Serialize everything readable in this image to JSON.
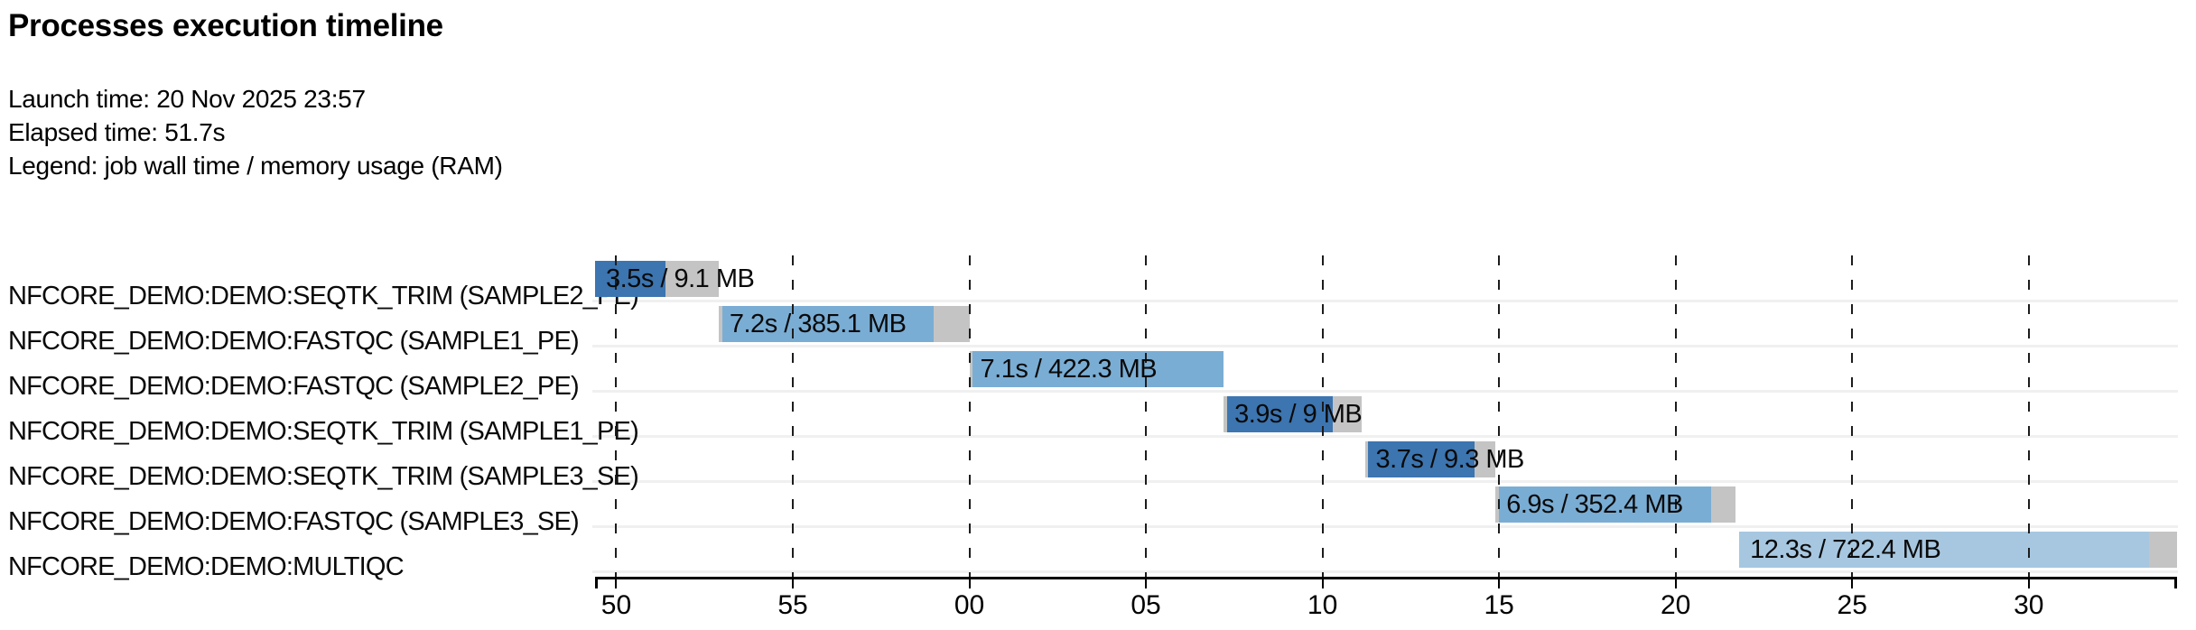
{
  "page": {
    "title": "Processes execution timeline",
    "launch_time": "Launch time: 20 Nov 2025 23:57",
    "elapsed_time": "Elapsed time: 51.7s",
    "legend_note": "Legend: job wall time / memory usage (RAM)"
  },
  "chart_data": {
    "type": "timeline-gantt",
    "title": "Processes execution timeline",
    "time_axis": {
      "description": "clock seconds after 23:57:00; labels show seconds of minute (00 = 23:58:00)",
      "domain_s": [
        49.4,
        94.2
      ],
      "ticks": [
        {
          "t": 50,
          "label": "50"
        },
        {
          "t": 55,
          "label": "55"
        },
        {
          "t": 60,
          "label": "00"
        },
        {
          "t": 65,
          "label": "05"
        },
        {
          "t": 70,
          "label": "10"
        },
        {
          "t": 75,
          "label": "15"
        },
        {
          "t": 80,
          "label": "20"
        },
        {
          "t": 85,
          "label": "25"
        },
        {
          "t": 90,
          "label": "30"
        }
      ]
    },
    "colors": {
      "SEQTK_TRIM": "#3c75b0",
      "FASTQC": "#7aadd4",
      "MULTIQC": "#a7c7e0",
      "overhead_gray": "#c4c4c4"
    },
    "processes": [
      {
        "name": "NFCORE_DEMO:DEMO:SEQTK_TRIM (SAMPLE2_PE)",
        "bar_label": "3.5s / 9.1 MB",
        "start_s": 49.4,
        "run_start_s": 49.4,
        "run_end_s": 51.4,
        "end_s": 52.9,
        "color_key": "SEQTK_TRIM"
      },
      {
        "name": "NFCORE_DEMO:DEMO:FASTQC (SAMPLE1_PE)",
        "bar_label": "7.2s / 385.1 MB",
        "start_s": 52.9,
        "run_start_s": 53.0,
        "run_end_s": 59.0,
        "end_s": 60.0,
        "color_key": "FASTQC"
      },
      {
        "name": "NFCORE_DEMO:DEMO:FASTQC (SAMPLE2_PE)",
        "bar_label": "7.1s / 422.3 MB",
        "start_s": 60.0,
        "run_start_s": 60.1,
        "run_end_s": 67.2,
        "end_s": 67.2,
        "color_key": "FASTQC"
      },
      {
        "name": "NFCORE_DEMO:DEMO:SEQTK_TRIM (SAMPLE1_PE)",
        "bar_label": "3.9s / 9 MB",
        "start_s": 67.2,
        "run_start_s": 67.3,
        "run_end_s": 70.3,
        "end_s": 71.1,
        "color_key": "SEQTK_TRIM"
      },
      {
        "name": "NFCORE_DEMO:DEMO:SEQTK_TRIM (SAMPLE3_SE)",
        "bar_label": "3.7s / 9.3 MB",
        "start_s": 71.2,
        "run_start_s": 71.3,
        "run_end_s": 74.3,
        "end_s": 74.9,
        "color_key": "SEQTK_TRIM"
      },
      {
        "name": "NFCORE_DEMO:DEMO:FASTQC (SAMPLE3_SE)",
        "bar_label": "6.9s / 352.4 MB",
        "start_s": 74.9,
        "run_start_s": 75.0,
        "run_end_s": 81.0,
        "end_s": 81.7,
        "color_key": "FASTQC"
      },
      {
        "name": "NFCORE_DEMO:DEMO:MULTIQC",
        "bar_label": "12.3s / 722.4 MB",
        "start_s": 81.8,
        "run_start_s": 81.8,
        "run_end_s": 93.4,
        "end_s": 94.2,
        "color_key": "MULTIQC"
      }
    ]
  }
}
